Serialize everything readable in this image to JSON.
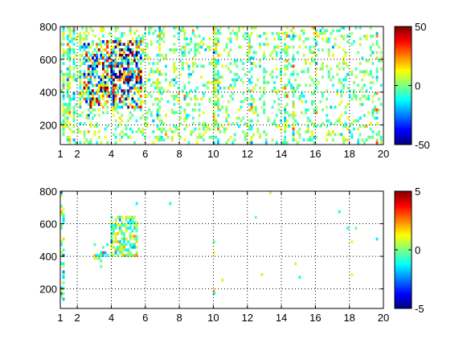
{
  "chart_data": [
    {
      "type": "heatmap",
      "title": "",
      "xlabel": "",
      "ylabel": "",
      "xlim": [
        1,
        20
      ],
      "ylim": [
        80,
        800
      ],
      "x_ticks": [
        1,
        2,
        4,
        6,
        8,
        10,
        12,
        14,
        16,
        18,
        20
      ],
      "y_ticks": [
        200,
        400,
        600,
        800
      ],
      "grid": true,
      "colorbar": {
        "range": [
          -50,
          50
        ],
        "ticks": [
          -50,
          0,
          50
        ],
        "colormap": "jet"
      },
      "blobs": [
        {
          "x": [
            2.4,
            5.8
          ],
          "y": [
            300,
            720
          ],
          "density": 0.6,
          "spread": 25
        },
        {
          "x": [
            4.0,
            5.8
          ],
          "y": [
            450,
            720
          ],
          "density": 0.7,
          "spread": 35
        }
      ],
      "background_density": 0.18,
      "background_spread": 8,
      "columns": [
        {
          "x": 1.2,
          "density": 0.7
        },
        {
          "x": 1.5,
          "density": 0.7
        },
        {
          "x": 1.8,
          "density": 0.6
        },
        {
          "x": 2.2,
          "density": 0.6
        },
        {
          "x": 2.6,
          "density": 0.5
        },
        {
          "x": 6.8,
          "density": 0.5
        },
        {
          "x": 8.3,
          "density": 0.5
        },
        {
          "x": 10.0,
          "density": 0.75
        },
        {
          "x": 10.2,
          "density": 0.55
        },
        {
          "x": 12.2,
          "density": 0.5
        },
        {
          "x": 13.0,
          "density": 0.45
        },
        {
          "x": 14.3,
          "density": 0.55
        },
        {
          "x": 14.7,
          "density": 0.55
        },
        {
          "x": 16.0,
          "density": 0.4
        },
        {
          "x": 17.7,
          "density": 0.4
        },
        {
          "x": 19.6,
          "density": 0.4
        }
      ]
    },
    {
      "type": "heatmap",
      "title": "",
      "xlabel": "",
      "ylabel": "",
      "xlim": [
        1,
        20
      ],
      "ylim": [
        80,
        800
      ],
      "x_ticks": [
        1,
        2,
        4,
        6,
        8,
        10,
        12,
        14,
        16,
        18,
        20
      ],
      "y_ticks": [
        200,
        400,
        600,
        800
      ],
      "grid": true,
      "colorbar": {
        "range": [
          -5,
          5
        ],
        "ticks": [
          -5,
          0,
          5
        ],
        "colormap": "jet"
      },
      "blobs": [
        {
          "x": [
            4.0,
            5.5
          ],
          "y": [
            400,
            650
          ],
          "density": 0.55,
          "spread": 1.2
        },
        {
          "x": [
            3.0,
            4.0
          ],
          "y": [
            360,
            480
          ],
          "density": 0.25,
          "spread": 1.2
        }
      ],
      "background_density": 0.002,
      "background_spread": 1.0,
      "columns": [
        {
          "x": 1.1,
          "density": 0.35
        },
        {
          "x": 10.0,
          "density": 0.18
        }
      ]
    }
  ]
}
